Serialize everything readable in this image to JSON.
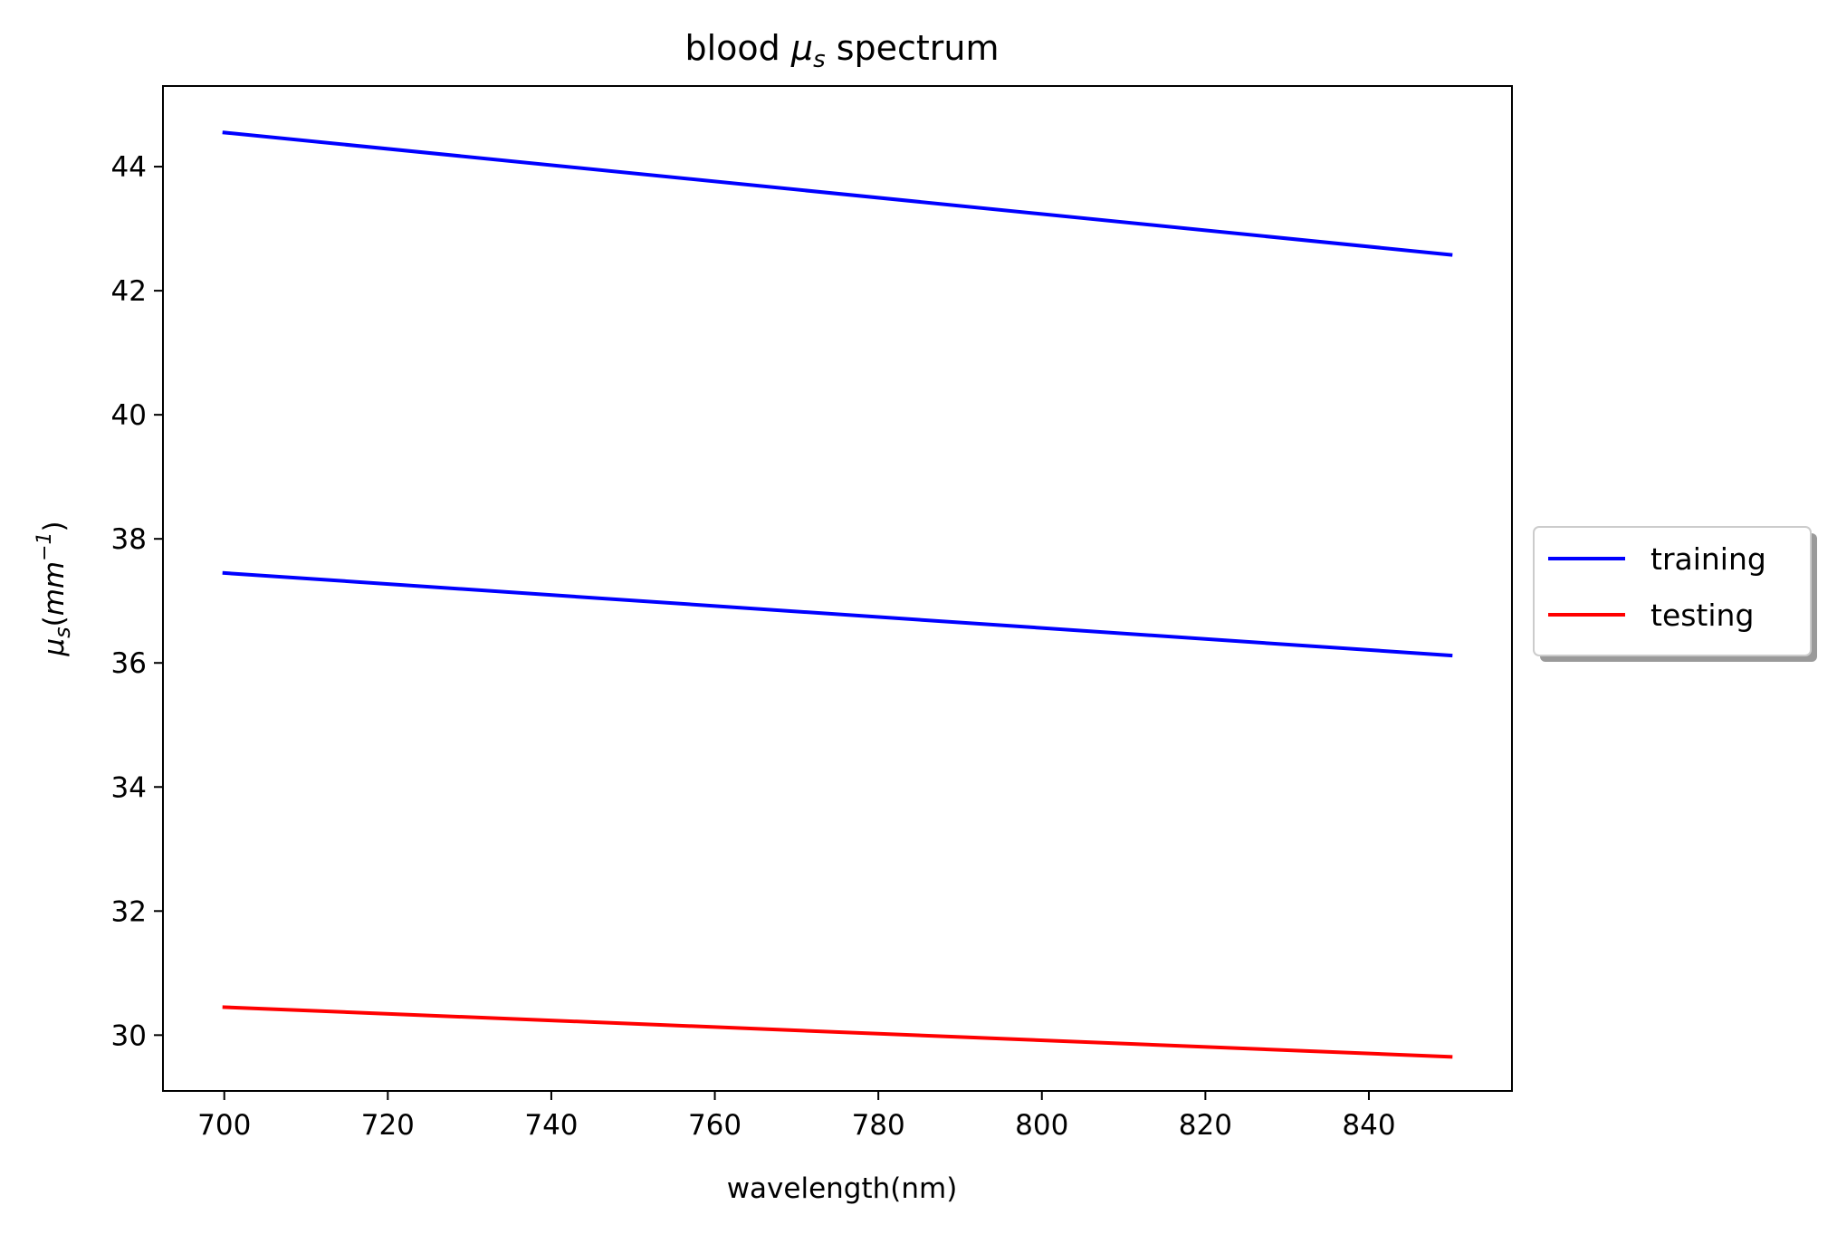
{
  "chart_data": {
    "type": "line",
    "title": {
      "pre": "blood ",
      "symbol": "μ",
      "sub": "s",
      "post": " spectrum"
    },
    "xlabel": "wavelength(nm)",
    "ylabel": {
      "symbol": "μ",
      "sub": "s",
      "open": "(",
      "unit": "mm",
      "sup": "−1",
      "close": ")"
    },
    "xlim": [
      692.5,
      857.5
    ],
    "ylim": [
      29.1,
      45.3
    ],
    "xticks": [
      700,
      720,
      740,
      760,
      780,
      800,
      820,
      840
    ],
    "yticks": [
      30,
      32,
      34,
      36,
      38,
      40,
      42,
      44
    ],
    "grid": false,
    "legend": {
      "placement": "right-outside-center",
      "entries": [
        {
          "label": "training",
          "color": "#0000ff"
        },
        {
          "label": "testing",
          "color": "#ff0000"
        }
      ]
    },
    "series": [
      {
        "name": "training",
        "color": "#0000ff",
        "x": [
          700,
          850
        ],
        "y": [
          44.55,
          42.58
        ]
      },
      {
        "name": "training",
        "color": "#0000ff",
        "x": [
          700,
          850
        ],
        "y": [
          37.45,
          36.12
        ]
      },
      {
        "name": "testing",
        "color": "#ff0000",
        "x": [
          700,
          850
        ],
        "y": [
          30.45,
          29.65
        ]
      }
    ]
  }
}
